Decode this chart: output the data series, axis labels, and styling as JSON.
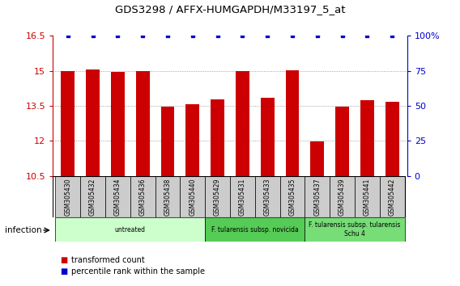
{
  "title": "GDS3298 / AFFX-HUMGAPDH/M33197_5_at",
  "samples": [
    "GSM305430",
    "GSM305432",
    "GSM305434",
    "GSM305436",
    "GSM305438",
    "GSM305440",
    "GSM305429",
    "GSM305431",
    "GSM305433",
    "GSM305435",
    "GSM305437",
    "GSM305439",
    "GSM305441",
    "GSM305442"
  ],
  "transformed_counts": [
    14.97,
    15.05,
    14.96,
    15.0,
    13.47,
    13.57,
    13.76,
    14.98,
    13.85,
    15.02,
    11.97,
    13.48,
    13.73,
    13.67
  ],
  "blue_dots_indices": [
    0,
    1,
    2,
    3,
    4,
    5,
    6,
    7,
    8,
    9,
    10,
    11,
    12,
    13
  ],
  "blue_dot_values": [
    100,
    100,
    100,
    100,
    100,
    100,
    100,
    100,
    100,
    100,
    100,
    100,
    100,
    100
  ],
  "ylim_left": [
    10.5,
    16.5
  ],
  "ylim_right": [
    0,
    100
  ],
  "yticks_left": [
    10.5,
    12,
    13.5,
    15,
    16.5
  ],
  "yticks_right": [
    0,
    25,
    50,
    75,
    100
  ],
  "bar_color": "#cc0000",
  "dot_color": "#0000cc",
  "bar_width": 0.55,
  "groups": [
    {
      "label": "untreated",
      "start": 0,
      "end": 6,
      "color": "#ccffcc"
    },
    {
      "label": "F. tularensis subsp. novicida",
      "start": 6,
      "end": 10,
      "color": "#55cc55"
    },
    {
      "label": "F. tularensis subsp. tularensis\nSchu 4",
      "start": 10,
      "end": 14,
      "color": "#77dd77"
    }
  ],
  "legend_items": [
    {
      "label": "transformed count",
      "color": "#cc0000"
    },
    {
      "label": "percentile rank within the sample",
      "color": "#0000cc"
    }
  ],
  "infection_label": "infection",
  "left_axis_color": "#cc0000",
  "right_axis_color": "#0000cc",
  "grid_color": "#888888",
  "grid_ticks": [
    12,
    13.5,
    15
  ],
  "label_bg_color": "#cccccc",
  "spine_color": "#000000"
}
